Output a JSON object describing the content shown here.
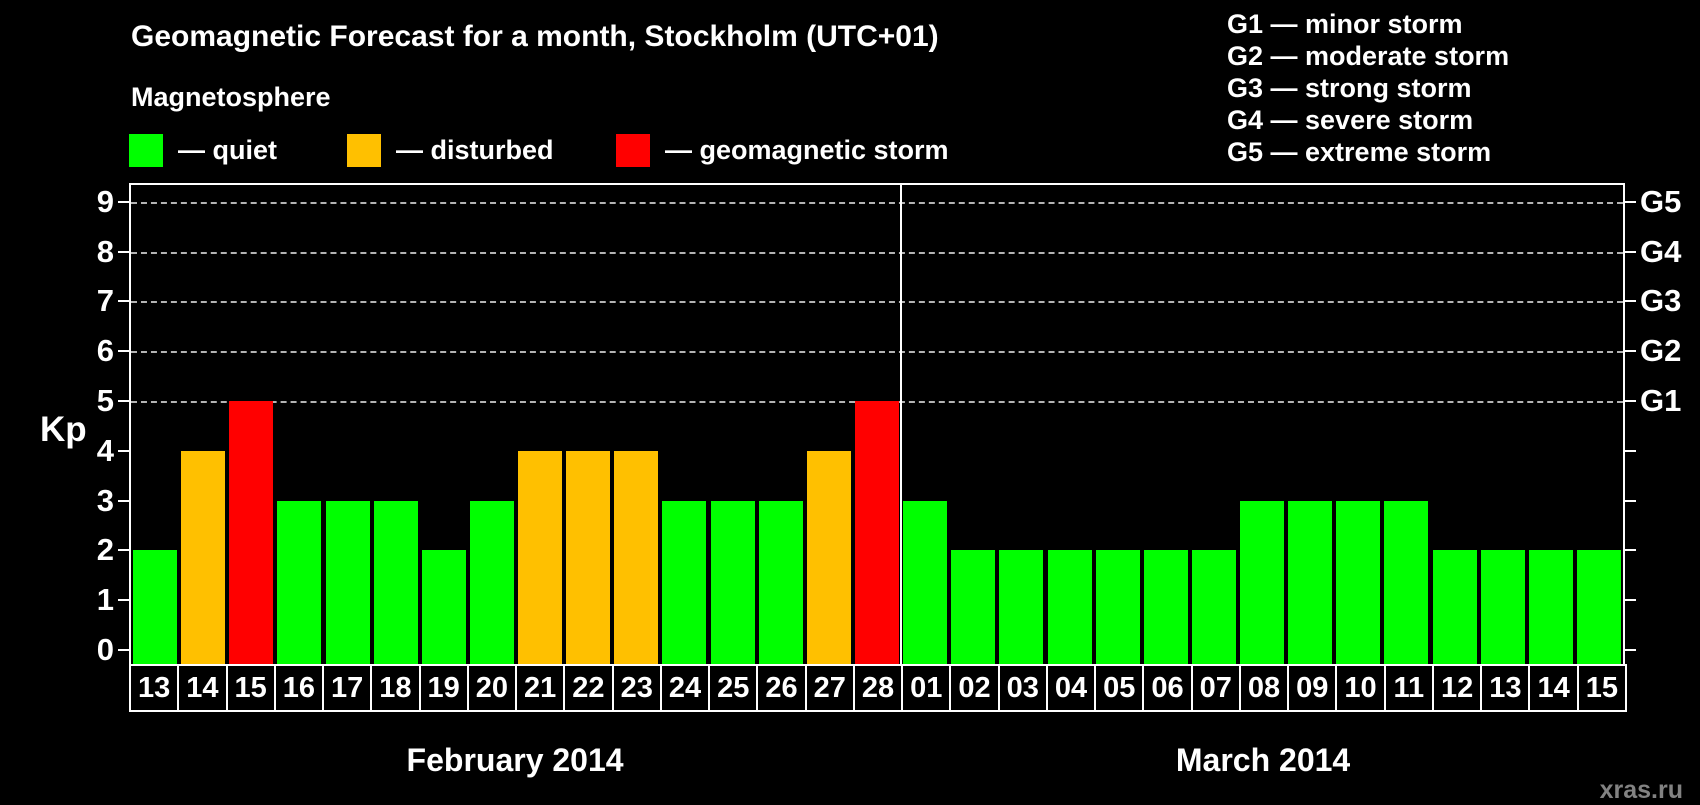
{
  "title": "Geomagnetic Forecast for a month, Stockholm (UTC+01)",
  "magnetosphere_label": "Magnetosphere",
  "kp_legend": [
    {
      "name": "quiet",
      "label": "— quiet",
      "color": "#00ff00"
    },
    {
      "name": "disturbed",
      "label": "— disturbed",
      "color": "#ffc000"
    },
    {
      "name": "storm",
      "label": "— geomagnetic storm",
      "color": "#ff0000"
    }
  ],
  "g_legend": [
    {
      "code": "G1",
      "label": "G1 — minor storm"
    },
    {
      "code": "G2",
      "label": "G2 — moderate storm"
    },
    {
      "code": "G3",
      "label": "G3 — strong storm"
    },
    {
      "code": "G4",
      "label": "G4 — severe storm"
    },
    {
      "code": "G5",
      "label": "G5 — extreme storm"
    }
  ],
  "watermark": "xras.ru",
  "chart_data": {
    "type": "bar",
    "title": "Geomagnetic Forecast for a month, Stockholm (UTC+01)",
    "ylabel": "Kp",
    "ylim": [
      0,
      9
    ],
    "y_ticks": [
      0,
      1,
      2,
      3,
      4,
      5,
      6,
      7,
      8,
      9
    ],
    "gridlines_kp": [
      5,
      6,
      7,
      8,
      9
    ],
    "grid": "dashed horizontal at G-storm levels only",
    "right_axis_labels": [
      {
        "label": "G1",
        "kp": 5
      },
      {
        "label": "G2",
        "kp": 6
      },
      {
        "label": "G3",
        "kp": 7
      },
      {
        "label": "G4",
        "kp": 8
      },
      {
        "label": "G5",
        "kp": 9
      }
    ],
    "status_colors": {
      "quiet": "#00ff00",
      "disturbed": "#ffc000",
      "storm": "#ff0000"
    },
    "months": [
      {
        "label": "February 2014",
        "short": "feb",
        "days": [
          {
            "day": "13",
            "kp": 2,
            "status": "quiet"
          },
          {
            "day": "14",
            "kp": 4,
            "status": "disturbed"
          },
          {
            "day": "15",
            "kp": 5,
            "status": "storm"
          },
          {
            "day": "16",
            "kp": 3,
            "status": "quiet"
          },
          {
            "day": "17",
            "kp": 3,
            "status": "quiet"
          },
          {
            "day": "18",
            "kp": 3,
            "status": "quiet"
          },
          {
            "day": "19",
            "kp": 2,
            "status": "quiet"
          },
          {
            "day": "20",
            "kp": 3,
            "status": "quiet"
          },
          {
            "day": "21",
            "kp": 4,
            "status": "disturbed"
          },
          {
            "day": "22",
            "kp": 4,
            "status": "disturbed"
          },
          {
            "day": "23",
            "kp": 4,
            "status": "disturbed"
          },
          {
            "day": "24",
            "kp": 3,
            "status": "quiet"
          },
          {
            "day": "25",
            "kp": 3,
            "status": "quiet"
          },
          {
            "day": "26",
            "kp": 3,
            "status": "quiet"
          },
          {
            "day": "27",
            "kp": 4,
            "status": "disturbed"
          },
          {
            "day": "28",
            "kp": 5,
            "status": "storm"
          }
        ]
      },
      {
        "label": "March 2014",
        "short": "mar",
        "days": [
          {
            "day": "01",
            "kp": 3,
            "status": "quiet"
          },
          {
            "day": "02",
            "kp": 2,
            "status": "quiet"
          },
          {
            "day": "03",
            "kp": 2,
            "status": "quiet"
          },
          {
            "day": "04",
            "kp": 2,
            "status": "quiet"
          },
          {
            "day": "05",
            "kp": 2,
            "status": "quiet"
          },
          {
            "day": "06",
            "kp": 2,
            "status": "quiet"
          },
          {
            "day": "07",
            "kp": 2,
            "status": "quiet"
          },
          {
            "day": "08",
            "kp": 3,
            "status": "quiet"
          },
          {
            "day": "09",
            "kp": 3,
            "status": "quiet"
          },
          {
            "day": "10",
            "kp": 3,
            "status": "quiet"
          },
          {
            "day": "11",
            "kp": 3,
            "status": "quiet"
          },
          {
            "day": "12",
            "kp": 2,
            "status": "quiet"
          },
          {
            "day": "13",
            "kp": 2,
            "status": "quiet"
          },
          {
            "day": "14",
            "kp": 2,
            "status": "quiet"
          },
          {
            "day": "15",
            "kp": 2,
            "status": "quiet"
          }
        ]
      }
    ]
  }
}
